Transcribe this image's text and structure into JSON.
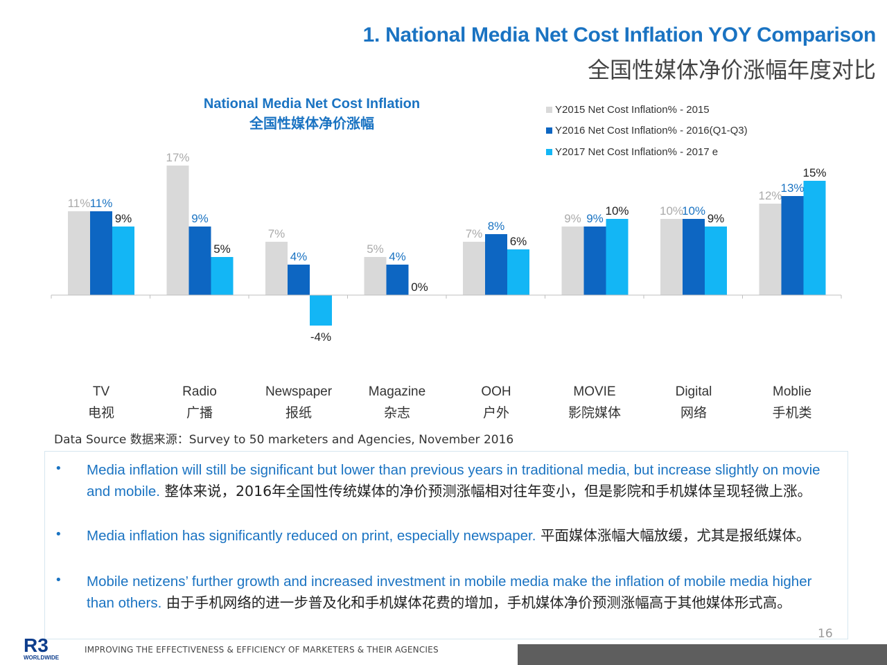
{
  "header": {
    "title_en": "1. National Media Net Cost Inflation YOY Comparison",
    "title_cn": "全国性媒体净价涨幅年度对比"
  },
  "chart_data": {
    "type": "bar",
    "title": "National Media Net Cost Inflation",
    "subtitle": "全国性媒体净价涨幅",
    "categories": [
      "TV",
      "Radio",
      "Newspaper",
      "Magazine",
      "OOH",
      "MOVIE",
      "Digital",
      "Moblie"
    ],
    "categories_cn": [
      "电视",
      "广播",
      "报纸",
      "杂志",
      "户外",
      "影院媒体",
      "网络",
      "手机类"
    ],
    "series": [
      {
        "name": "Y2015 Net Cost Inflation% - 2015",
        "color": "#d9d9d9",
        "label_color": "#aaaaaa",
        "values": [
          11,
          17,
          7,
          5,
          7,
          9,
          10,
          12
        ]
      },
      {
        "name": "Y2016 Net Cost Inflation% - 2016(Q1-Q3)",
        "color": "#0d66c2",
        "label_color": "#1a73c2",
        "values": [
          11,
          9,
          4,
          4,
          8,
          9,
          10,
          13
        ]
      },
      {
        "name": "Y2017 Net Cost Inflation% - 2017 e",
        "color": "#13b6f5",
        "label_color": "#222222",
        "values": [
          9,
          5,
          -4,
          0,
          6,
          10,
          9,
          15
        ]
      }
    ],
    "ylim": [
      -4,
      17
    ],
    "legend_position": "top-right",
    "grid": false
  },
  "source": "Data Source 数据来源：Survey to 50 marketers and Agencies, November 2016",
  "notes": [
    {
      "en": "Media inflation will still be significant but lower than previous years in traditional media, but increase slightly  on movie and mobile.",
      "cn": "整体来说，2016年全国性传统媒体的净价预测涨幅相对往年变小，但是影院和手机媒体呈现轻微上涨。"
    },
    {
      "en": "Media inflation has significantly reduced on print, especially newspaper.",
      "cn": "平面媒体涨幅大幅放缓，尤其是报纸媒体。"
    },
    {
      "en": "Mobile netizens’ further growth and increased investment in mobile media  make the inflation of mobile media higher than others.",
      "cn": "由于手机网络的进一步普及化和手机媒体花费的增加，手机媒体净价预测涨幅高于其他媒体形式高。"
    }
  ],
  "bullet_char": "•",
  "page_number": "16",
  "footer": {
    "text": "IMPROVING THE EFFECTIVENESS & EFFICIENCY OF MARKETERS & THEIR AGENCIES",
    "logo": "R3",
    "logo_sub": "WORLDWIDE"
  }
}
